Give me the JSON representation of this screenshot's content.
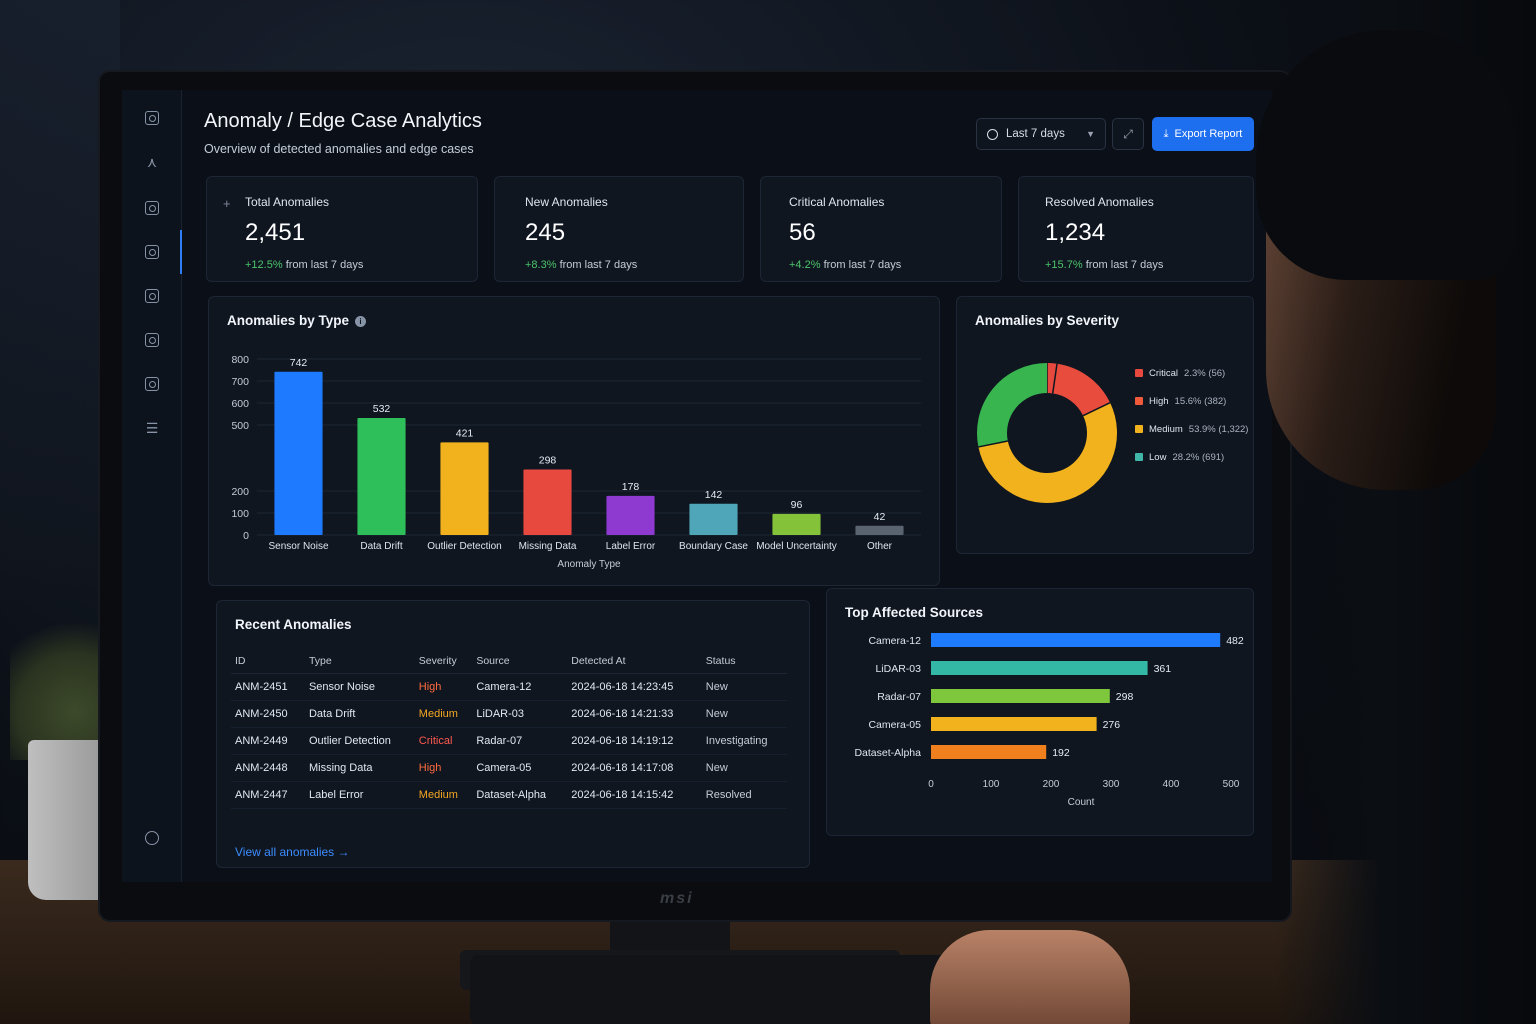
{
  "header": {
    "title": "Anomaly / Edge Case Analytics",
    "subtitle": "Overview of detected anomalies and edge cases",
    "range_label": "Last 7 days",
    "export_label": "Export Report"
  },
  "kpis": [
    {
      "label": "Total Anomalies",
      "value": "2,451",
      "delta": "+12.5%",
      "period": "from last 7 days"
    },
    {
      "label": "New Anomalies",
      "value": "245",
      "delta": "+8.3%",
      "period": "from last 7 days"
    },
    {
      "label": "Critical Anomalies",
      "value": "56",
      "delta": "+4.2%",
      "period": "from last 7 days"
    },
    {
      "label": "Resolved Anomalies",
      "value": "1,234",
      "delta": "+15.7%",
      "period": "from last 7 days"
    }
  ],
  "chart_data": [
    {
      "type": "bar",
      "title": "Anomalies by Type",
      "xlabel": "Anomaly Type",
      "ylabel": "",
      "categories": [
        "Sensor Noise",
        "Data Drift",
        "Outlier Detection",
        "Missing Data",
        "Label Error",
        "Boundary Case",
        "Model Uncertainty",
        "Other"
      ],
      "values": [
        742,
        532,
        421,
        298,
        178,
        142,
        96,
        42
      ],
      "colors": [
        "#1e7bff",
        "#2fbf5a",
        "#f2b21d",
        "#e8493f",
        "#8e3ad1",
        "#4fa6b8",
        "#84c23a",
        "#5a6370"
      ],
      "ylim": [
        0,
        800
      ],
      "yticks": [
        0,
        100,
        200,
        500,
        600,
        700,
        800
      ],
      "grid": true
    },
    {
      "type": "pie",
      "title": "Anomalies by Severity",
      "categories": [
        "Critical",
        "High",
        "Medium",
        "Low"
      ],
      "percent_labels": [
        "2.3%",
        "15.6%",
        "53.9%",
        "28.2%"
      ],
      "count_labels": [
        "(56)",
        "(382)",
        "(1,322)",
        "(691)"
      ],
      "values": [
        56,
        382,
        1322,
        691
      ],
      "legend_colors": [
        "#e8493f",
        "#ef5a3a",
        "#f2b21d",
        "#3fb6a8"
      ],
      "ring_colors": [
        "#e8493f",
        "#e84c3d",
        "#f2b21d",
        "#38b54f"
      ],
      "legend": "right"
    },
    {
      "type": "bar",
      "orientation": "horizontal",
      "title": "Top Affected Sources",
      "xlabel": "Count",
      "categories": [
        "Camera-12",
        "LiDAR-03",
        "Radar-07",
        "Camera-05",
        "Dataset-Alpha"
      ],
      "values": [
        482,
        361,
        298,
        276,
        192
      ],
      "colors": [
        "#1e7bff",
        "#34b8a6",
        "#7ec63c",
        "#f2b21d",
        "#f07f1e"
      ],
      "xlim": [
        0,
        500
      ],
      "xticks": [
        0,
        100,
        200,
        300,
        400,
        500
      ]
    }
  ],
  "recent": {
    "title": "Recent Anomalies",
    "columns": [
      "ID",
      "Type",
      "Severity",
      "Source",
      "Detected At",
      "Status"
    ],
    "rows": [
      {
        "id": "ANM-2451",
        "type": "Sensor Noise",
        "severity": "High",
        "sev_class": "high",
        "source": "Camera-12",
        "detected": "2024-06-18 14:23:45",
        "status": "New"
      },
      {
        "id": "ANM-2450",
        "type": "Data Drift",
        "severity": "Medium",
        "sev_class": "medium",
        "source": "LiDAR-03",
        "detected": "2024-06-18 14:21:33",
        "status": "New"
      },
      {
        "id": "ANM-2449",
        "type": "Outlier Detection",
        "severity": "Critical",
        "sev_class": "critical",
        "source": "Radar-07",
        "detected": "2024-06-18 14:19:12",
        "status": "Investigating"
      },
      {
        "id": "ANM-2448",
        "type": "Missing Data",
        "severity": "High",
        "sev_class": "high",
        "source": "Camera-05",
        "detected": "2024-06-18 14:17:08",
        "status": "New"
      },
      {
        "id": "ANM-2447",
        "type": "Label Error",
        "severity": "Medium",
        "sev_class": "medium",
        "source": "Dataset-Alpha",
        "detected": "2024-06-18 14:15:42",
        "status": "Resolved"
      }
    ],
    "view_all": "View all anomalies →"
  },
  "monitor_brand": "msi"
}
